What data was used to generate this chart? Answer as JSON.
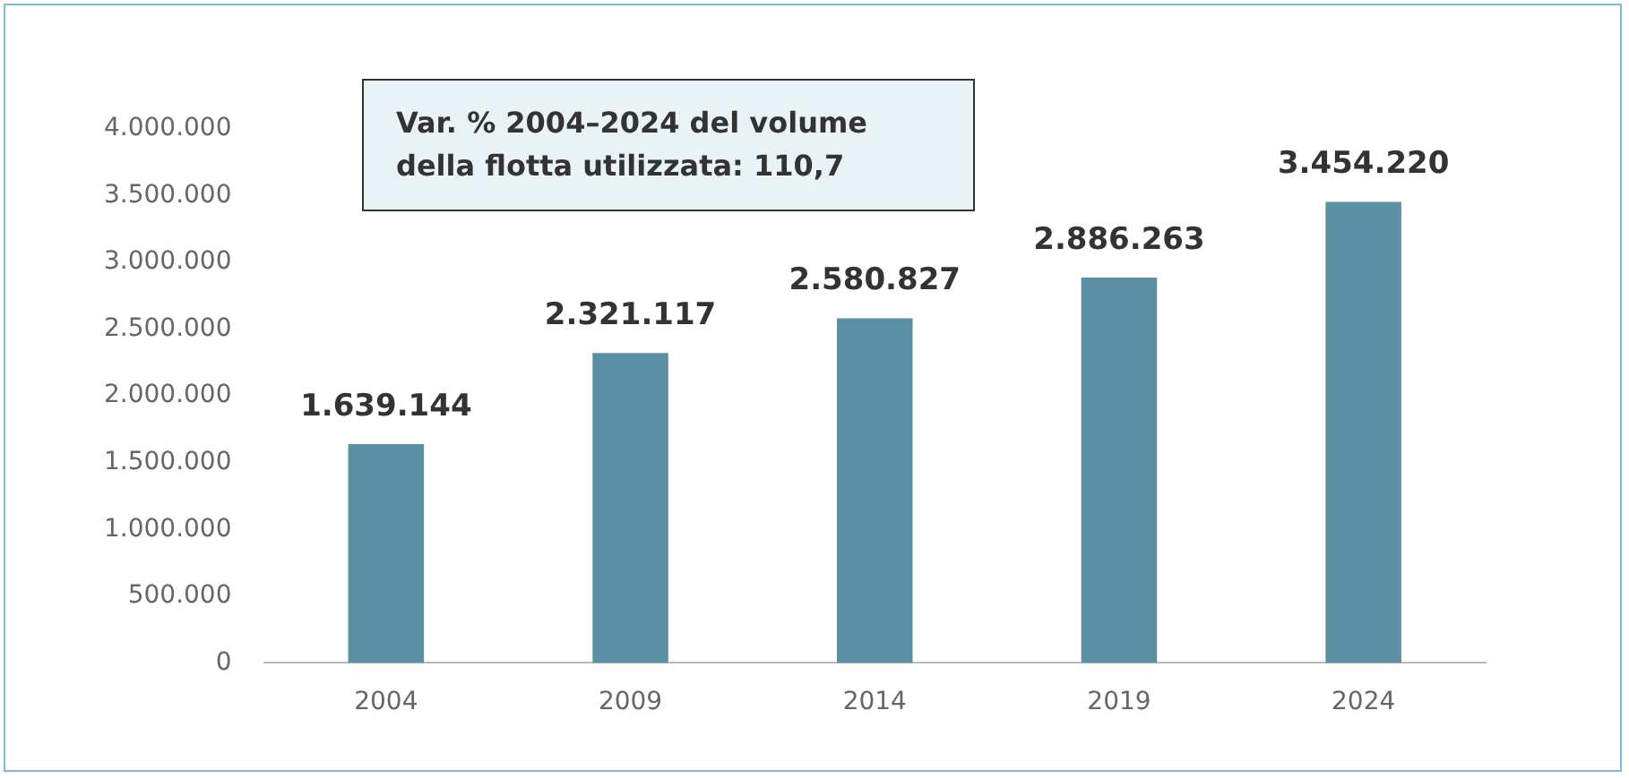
{
  "chart_data": {
    "type": "bar",
    "categories": [
      "2004",
      "2009",
      "2014",
      "2019",
      "2024"
    ],
    "values": [
      1639144,
      2321117,
      2580827,
      2886263,
      3454220
    ],
    "value_labels": [
      "1.639.144",
      "2.321.117",
      "2.580.827",
      "2.886.263",
      "3.454.220"
    ],
    "color": "#5b8fa3",
    "ylim": [
      0,
      4000000
    ],
    "yticks": [
      {
        "value": 0,
        "label": "0"
      },
      {
        "value": 500000,
        "label": "500.000"
      },
      {
        "value": 1000000,
        "label": "1.000.000"
      },
      {
        "value": 1500000,
        "label": "1.500.000"
      },
      {
        "value": 2000000,
        "label": "2.000.000"
      },
      {
        "value": 2500000,
        "label": "2.500.000"
      },
      {
        "value": 3000000,
        "label": "3.000.000"
      },
      {
        "value": 3500000,
        "label": "3.500.000"
      },
      {
        "value": 4000000,
        "label": "4.000.000"
      }
    ],
    "grid": false,
    "legend": false,
    "annotations": [
      "Var. % 2004–2024 del volume della flotta utilizzata: 110,7"
    ]
  }
}
